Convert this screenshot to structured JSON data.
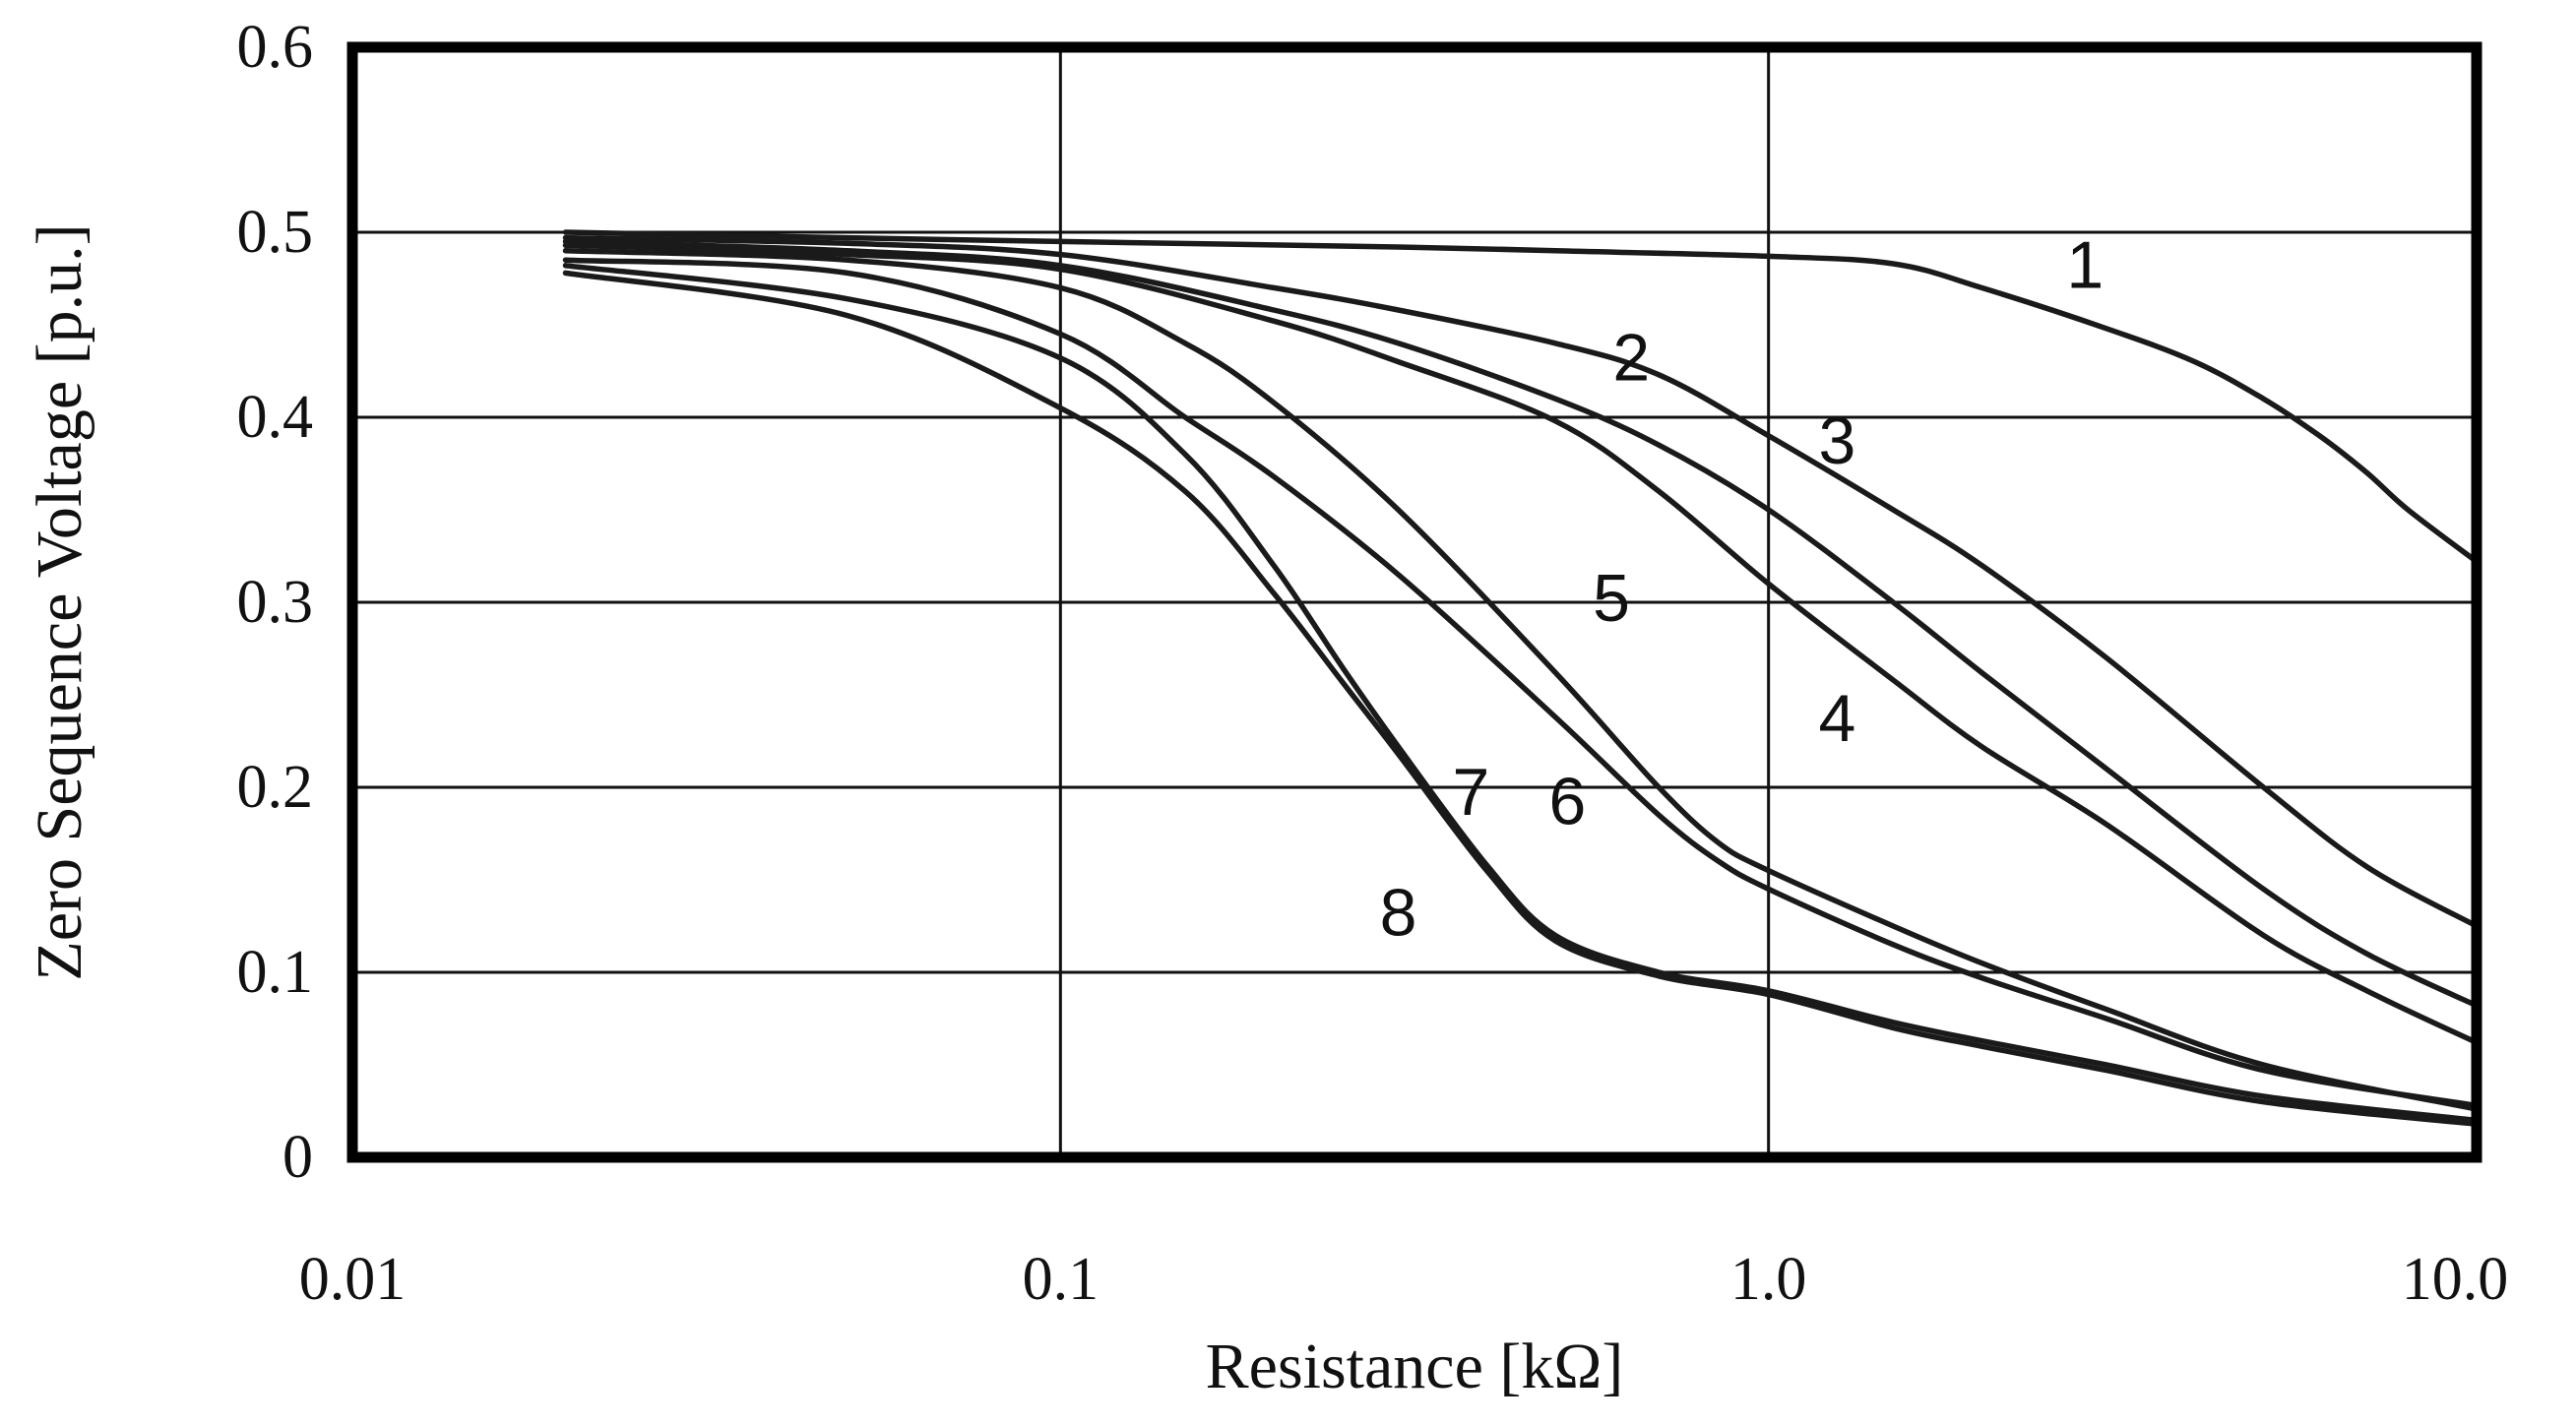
{
  "chart_data": {
    "type": "line",
    "title": "",
    "xlabel": "Resistance [kΩ]",
    "ylabel": "Zero Sequence Voltage [p.u.]",
    "x_scale": "log",
    "xlim": [
      0.01,
      10.0
    ],
    "ylim": [
      0,
      0.6
    ],
    "x_ticks": [
      0.01,
      0.1,
      1.0,
      10.0
    ],
    "x_tick_labels": [
      "0.01",
      "0.1",
      "1.0",
      "10.0"
    ],
    "y_ticks": [
      0,
      0.1,
      0.2,
      0.3,
      0.4,
      0.5,
      0.6
    ],
    "y_tick_labels": [
      "0",
      "0.1",
      "0.2",
      "0.3",
      "0.4",
      "0.5",
      "0.6"
    ],
    "grid": true,
    "legend": "none",
    "line_color": "#1a1a1a",
    "series": [
      {
        "label": "1",
        "label_at": [
          2.8,
          0.47
        ],
        "points": [
          [
            0.02,
            0.5
          ],
          [
            0.05,
            0.497
          ],
          [
            0.1,
            0.495
          ],
          [
            0.3,
            0.492
          ],
          [
            0.5,
            0.49
          ],
          [
            1.0,
            0.487
          ],
          [
            1.5,
            0.483
          ],
          [
            2.0,
            0.47
          ],
          [
            3.0,
            0.448
          ],
          [
            4.0,
            0.43
          ],
          [
            5.0,
            0.41
          ],
          [
            6.0,
            0.39
          ],
          [
            7.0,
            0.37
          ],
          [
            8.0,
            0.35
          ],
          [
            10.0,
            0.322
          ]
        ]
      },
      {
        "label": "2",
        "label_at": [
          0.64,
          0.42
        ],
        "points": [
          [
            0.02,
            0.497
          ],
          [
            0.05,
            0.494
          ],
          [
            0.1,
            0.488
          ],
          [
            0.2,
            0.47
          ],
          [
            0.3,
            0.458
          ],
          [
            0.5,
            0.44
          ],
          [
            0.7,
            0.423
          ],
          [
            1.0,
            0.39
          ],
          [
            1.5,
            0.35
          ],
          [
            2.0,
            0.32
          ],
          [
            3.0,
            0.27
          ],
          [
            5.0,
            0.2
          ],
          [
            7.0,
            0.157
          ],
          [
            10.0,
            0.125
          ]
        ]
      },
      {
        "label": "3",
        "label_at": [
          1.25,
          0.375
        ],
        "points": [
          [
            0.02,
            0.495
          ],
          [
            0.05,
            0.49
          ],
          [
            0.1,
            0.482
          ],
          [
            0.2,
            0.458
          ],
          [
            0.3,
            0.44
          ],
          [
            0.5,
            0.41
          ],
          [
            0.7,
            0.385
          ],
          [
            1.0,
            0.35
          ],
          [
            1.5,
            0.3
          ],
          [
            2.0,
            0.262
          ],
          [
            3.0,
            0.21
          ],
          [
            5.0,
            0.145
          ],
          [
            7.0,
            0.11
          ],
          [
            10.0,
            0.082
          ]
        ]
      },
      {
        "label": "4",
        "label_at": [
          1.25,
          0.225
        ],
        "points": [
          [
            0.02,
            0.493
          ],
          [
            0.05,
            0.488
          ],
          [
            0.1,
            0.48
          ],
          [
            0.2,
            0.452
          ],
          [
            0.3,
            0.43
          ],
          [
            0.5,
            0.398
          ],
          [
            0.7,
            0.36
          ],
          [
            1.0,
            0.31
          ],
          [
            1.5,
            0.258
          ],
          [
            2.0,
            0.222
          ],
          [
            3.0,
            0.18
          ],
          [
            5.0,
            0.12
          ],
          [
            7.0,
            0.09
          ],
          [
            10.0,
            0.062
          ]
        ]
      },
      {
        "label": "5",
        "label_at": [
          0.6,
          0.29
        ],
        "points": [
          [
            0.02,
            0.49
          ],
          [
            0.05,
            0.485
          ],
          [
            0.1,
            0.47
          ],
          [
            0.15,
            0.44
          ],
          [
            0.2,
            0.408
          ],
          [
            0.3,
            0.35
          ],
          [
            0.5,
            0.262
          ],
          [
            0.7,
            0.2
          ],
          [
            0.85,
            0.17
          ],
          [
            1.0,
            0.155
          ],
          [
            1.5,
            0.125
          ],
          [
            2.0,
            0.105
          ],
          [
            3.0,
            0.08
          ],
          [
            5.0,
            0.05
          ],
          [
            10.0,
            0.026
          ]
        ]
      },
      {
        "label": "6",
        "label_at": [
          0.52,
          0.18
        ],
        "points": [
          [
            0.02,
            0.485
          ],
          [
            0.05,
            0.478
          ],
          [
            0.1,
            0.445
          ],
          [
            0.15,
            0.4
          ],
          [
            0.2,
            0.368
          ],
          [
            0.3,
            0.315
          ],
          [
            0.5,
            0.238
          ],
          [
            0.7,
            0.185
          ],
          [
            0.85,
            0.16
          ],
          [
            1.0,
            0.145
          ],
          [
            1.5,
            0.115
          ],
          [
            2.0,
            0.097
          ],
          [
            3.0,
            0.075
          ],
          [
            5.0,
            0.047
          ],
          [
            10.0,
            0.028
          ]
        ]
      },
      {
        "label": "7",
        "label_at": [
          0.38,
          0.185
        ],
        "points": [
          [
            0.02,
            0.482
          ],
          [
            0.05,
            0.464
          ],
          [
            0.1,
            0.432
          ],
          [
            0.15,
            0.38
          ],
          [
            0.2,
            0.32
          ],
          [
            0.25,
            0.265
          ],
          [
            0.3,
            0.222
          ],
          [
            0.4,
            0.158
          ],
          [
            0.5,
            0.12
          ],
          [
            0.7,
            0.1
          ],
          [
            1.0,
            0.09
          ],
          [
            1.5,
            0.073
          ],
          [
            2.0,
            0.063
          ],
          [
            3.0,
            0.05
          ],
          [
            5.0,
            0.033
          ],
          [
            10.0,
            0.02
          ]
        ]
      },
      {
        "label": "8",
        "label_at": [
          0.3,
          0.12
        ],
        "points": [
          [
            0.02,
            0.478
          ],
          [
            0.05,
            0.455
          ],
          [
            0.1,
            0.405
          ],
          [
            0.15,
            0.36
          ],
          [
            0.2,
            0.305
          ],
          [
            0.25,
            0.257
          ],
          [
            0.3,
            0.218
          ],
          [
            0.4,
            0.155
          ],
          [
            0.5,
            0.117
          ],
          [
            0.7,
            0.098
          ],
          [
            1.0,
            0.088
          ],
          [
            1.5,
            0.07
          ],
          [
            2.0,
            0.06
          ],
          [
            3.0,
            0.047
          ],
          [
            5.0,
            0.03
          ],
          [
            10.0,
            0.018
          ]
        ]
      }
    ]
  }
}
